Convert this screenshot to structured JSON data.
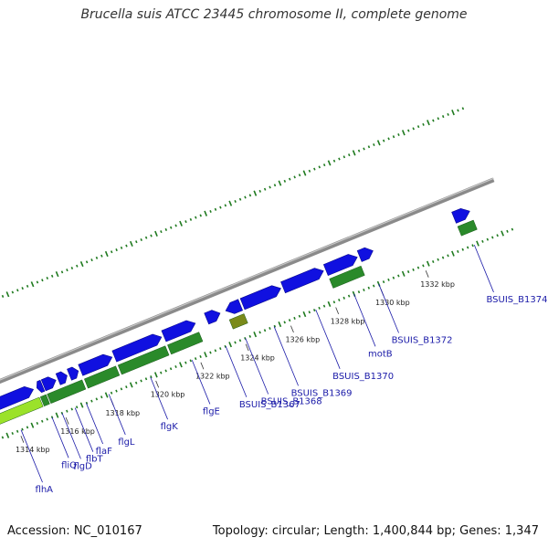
{
  "title": "Brucella suis ATCC 23445 chromosome II, complete genome",
  "footer": {
    "accession": "Accession: NC_010167",
    "stats": "Topology: circular; Length: 1,400,844 bp; Genes: 1,347"
  },
  "colors": {
    "backbone": "#8a8a8a",
    "cds_blue": "#1010e0",
    "gene_green": "#2a8a2a",
    "gene_lightgreen": "#9be22a",
    "gene_olive": "#7a8a1a",
    "dotted_track": "#1f7a1f",
    "label_text": "#1a1aa8"
  },
  "scale": {
    "unit": "kbp",
    "ticks": [
      {
        "kbp": 1314,
        "label": "1314 kbp"
      },
      {
        "kbp": 1316,
        "label": "1316 kbp"
      },
      {
        "kbp": 1318,
        "label": "1318 kbp"
      },
      {
        "kbp": 1320,
        "label": "1320 kbp"
      },
      {
        "kbp": 1322,
        "label": "1322 kbp"
      },
      {
        "kbp": 1324,
        "label": "1324 kbp"
      },
      {
        "kbp": 1326,
        "label": "1326 kbp"
      },
      {
        "kbp": 1328,
        "label": "1328 kbp"
      },
      {
        "kbp": 1330,
        "label": "1330 kbp"
      },
      {
        "kbp": 1332,
        "label": "1332 kbp"
      }
    ]
  },
  "genes": [
    {
      "name": "flhA",
      "start": 1313.0,
      "end": 1315.2,
      "strand": "+",
      "type": "cds"
    },
    {
      "name": "fliQ",
      "start": 1315.35,
      "end": 1315.6,
      "strand": "-",
      "type": "cds"
    },
    {
      "name": "flgD",
      "start": 1315.65,
      "end": 1316.2,
      "strand": "+",
      "type": "cds"
    },
    {
      "name": "flbT",
      "start": 1316.3,
      "end": 1316.7,
      "strand": "+",
      "type": "cds"
    },
    {
      "name": "flaF",
      "start": 1316.8,
      "end": 1317.2,
      "strand": "+",
      "type": "cds"
    },
    {
      "name": "flgL",
      "start": 1317.3,
      "end": 1318.7,
      "strand": "+",
      "type": "cds"
    },
    {
      "name": "flgK",
      "start": 1318.8,
      "end": 1320.9,
      "strand": "+",
      "type": "cds"
    },
    {
      "name": "flgE",
      "start": 1321.0,
      "end": 1322.4,
      "strand": "+",
      "type": "cds"
    },
    {
      "name": "BSUIS_B1367",
      "start": 1322.9,
      "end": 1323.5,
      "strand": "+",
      "type": "cds"
    },
    {
      "name": "BSUIS_B1368",
      "start": 1323.75,
      "end": 1324.4,
      "strand": "-",
      "type": "cds"
    },
    {
      "name": "BSUIS_B1369",
      "start": 1324.5,
      "end": 1326.2,
      "strand": "+",
      "type": "cds"
    },
    {
      "name": "BSUIS_B1370",
      "start": 1326.3,
      "end": 1328.1,
      "strand": "+",
      "type": "cds"
    },
    {
      "name": "motB",
      "start": 1328.2,
      "end": 1329.6,
      "strand": "+",
      "type": "cds"
    },
    {
      "name": "BSUIS_B1372",
      "start": 1329.7,
      "end": 1330.3,
      "strand": "+",
      "type": "cds"
    },
    {
      "name": "BSUIS_B1374",
      "start": 1333.9,
      "end": 1334.6,
      "strand": "+",
      "type": "cds"
    }
  ],
  "green_segments": [
    {
      "start": 1313.0,
      "end": 1315.3,
      "color": "gene_lightgreen"
    },
    {
      "start": 1315.35,
      "end": 1315.6,
      "color": "gene_green"
    },
    {
      "start": 1315.65,
      "end": 1317.2,
      "color": "gene_green"
    },
    {
      "start": 1317.3,
      "end": 1318.7,
      "color": "gene_green"
    },
    {
      "start": 1318.8,
      "end": 1320.9,
      "color": "gene_green"
    },
    {
      "start": 1321.0,
      "end": 1322.4,
      "color": "gene_green"
    },
    {
      "start": 1323.75,
      "end": 1324.4,
      "color": "gene_olive"
    },
    {
      "start": 1328.2,
      "end": 1329.6,
      "color": "gene_green"
    },
    {
      "start": 1333.9,
      "end": 1334.6,
      "color": "gene_green"
    }
  ]
}
